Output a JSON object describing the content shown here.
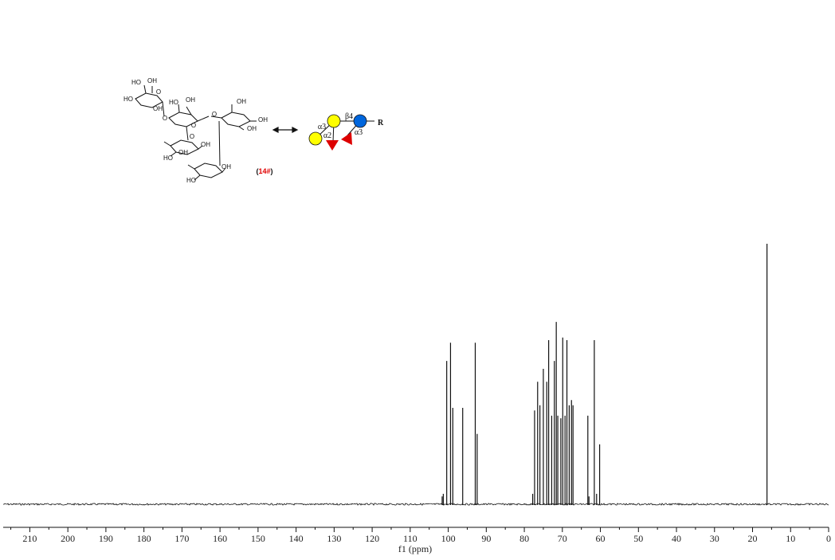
{
  "chart_data": {
    "type": "line",
    "xlabel": "f1 (ppm)",
    "xlim": [
      217,
      0
    ],
    "x_ticks": [
      210,
      200,
      190,
      180,
      170,
      160,
      150,
      140,
      130,
      120,
      110,
      100,
      90,
      80,
      70,
      60,
      50,
      40,
      30,
      20,
      10,
      0
    ],
    "x_reversed": true,
    "peaks": [
      {
        "ppm": 101.6,
        "height": 0.03
      },
      {
        "ppm": 101.3,
        "height": 0.04
      },
      {
        "ppm": 100.4,
        "height": 0.55
      },
      {
        "ppm": 99.4,
        "height": 0.62
      },
      {
        "ppm": 98.8,
        "height": 0.37
      },
      {
        "ppm": 96.2,
        "height": 0.37
      },
      {
        "ppm": 92.9,
        "height": 0.62
      },
      {
        "ppm": 92.4,
        "height": 0.27
      },
      {
        "ppm": 77.8,
        "height": 0.04
      },
      {
        "ppm": 77.3,
        "height": 0.36
      },
      {
        "ppm": 76.5,
        "height": 0.47
      },
      {
        "ppm": 75.9,
        "height": 0.38
      },
      {
        "ppm": 75.0,
        "height": 0.52
      },
      {
        "ppm": 74.1,
        "height": 0.47
      },
      {
        "ppm": 73.6,
        "height": 0.63
      },
      {
        "ppm": 72.8,
        "height": 0.34
      },
      {
        "ppm": 72.1,
        "height": 0.55
      },
      {
        "ppm": 71.6,
        "height": 0.7
      },
      {
        "ppm": 71.2,
        "height": 0.34
      },
      {
        "ppm": 70.4,
        "height": 0.33
      },
      {
        "ppm": 69.9,
        "height": 0.64
      },
      {
        "ppm": 69.3,
        "height": 0.34
      },
      {
        "ppm": 68.8,
        "height": 0.63
      },
      {
        "ppm": 68.2,
        "height": 0.38
      },
      {
        "ppm": 67.6,
        "height": 0.4
      },
      {
        "ppm": 67.2,
        "height": 0.38
      },
      {
        "ppm": 63.3,
        "height": 0.34
      },
      {
        "ppm": 63.0,
        "height": 0.03
      },
      {
        "ppm": 61.6,
        "height": 0.63
      },
      {
        "ppm": 61.0,
        "height": 0.04
      },
      {
        "ppm": 60.2,
        "height": 0.23
      },
      {
        "ppm": 16.2,
        "height": 1.0
      }
    ]
  },
  "structure": {
    "labels": [
      "HO",
      "OH",
      "HO",
      "O",
      "HO",
      "OH",
      "OH",
      "O",
      "OH",
      "O",
      "OH",
      "O",
      "OH",
      "O",
      "OH",
      "HO",
      "OH",
      "HO",
      "OH"
    ],
    "compound_label": "14#",
    "compound_color": "#e00000",
    "arrow": "double-headed-arrow"
  },
  "glycan": {
    "linkages": [
      "α3",
      "β4",
      "α2",
      "α3"
    ],
    "reducing_end": "R",
    "colors": {
      "galactose": "#ffff00",
      "glucose": "#0066dd",
      "fucose": "#dd0000"
    }
  }
}
